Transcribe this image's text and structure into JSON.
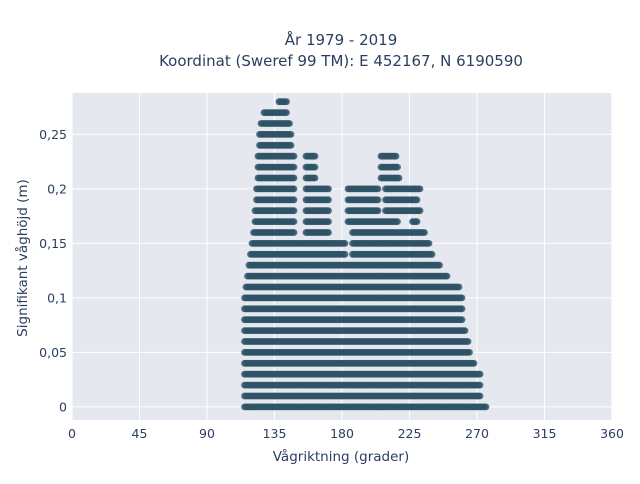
{
  "chart_data": {
    "type": "scatter",
    "title_line1": "År 1979 - 2019",
    "title_line2": "Koordinat (Sweref 99 TM): E 452167, N 6190590",
    "xlabel": "Vågriktning (grader)",
    "ylabel": "Signifikant våghöjd (m)",
    "xlim": [
      0,
      360
    ],
    "ylim": [
      -0.012,
      0.288
    ],
    "x_ticks": [
      0,
      45,
      90,
      135,
      180,
      225,
      270,
      315,
      360
    ],
    "x_tick_labels": [
      "0",
      "45",
      "90",
      "135",
      "180",
      "225",
      "270",
      "315",
      "360"
    ],
    "y_ticks": [
      0,
      0.05,
      0.1,
      0.15,
      0.2,
      0.25
    ],
    "y_tick_labels": [
      "0",
      "0,05",
      "0,1",
      "0,15",
      "0,2",
      "0,25"
    ],
    "grid": true,
    "x_step_deg": 1,
    "y_step_m": 0.01,
    "marker_color": "#2e5266",
    "plot_background": "#e5e8ef",
    "grid_color": "#ffffff",
    "envelope": [
      {
        "y": 0.0,
        "xmin": 115,
        "xmax": 276
      },
      {
        "y": 0.01,
        "xmin": 115,
        "xmax": 272
      },
      {
        "y": 0.02,
        "xmin": 115,
        "xmax": 272
      },
      {
        "y": 0.03,
        "xmin": 115,
        "xmax": 272
      },
      {
        "y": 0.04,
        "xmin": 115,
        "xmax": 268
      },
      {
        "y": 0.05,
        "xmin": 115,
        "xmax": 265
      },
      {
        "y": 0.06,
        "xmin": 115,
        "xmax": 264
      },
      {
        "y": 0.07,
        "xmin": 115,
        "xmax": 262
      },
      {
        "y": 0.08,
        "xmin": 115,
        "xmax": 260
      },
      {
        "y": 0.09,
        "xmin": 115,
        "xmax": 260
      },
      {
        "y": 0.1,
        "xmin": 115,
        "xmax": 260
      },
      {
        "y": 0.11,
        "xmin": 116,
        "xmax": 258
      },
      {
        "y": 0.12,
        "xmin": 117,
        "xmax": 250
      },
      {
        "y": 0.13,
        "xmin": 118,
        "xmax": 245
      },
      {
        "y": 0.14,
        "xmin": 119,
        "xmax": 240
      },
      {
        "y": 0.15,
        "xmin": 120,
        "xmax": 238
      },
      {
        "y": 0.16,
        "xmin": 121,
        "xmax": 235
      },
      {
        "y": 0.17,
        "xmin": 122,
        "xmax": 230
      },
      {
        "y": 0.18,
        "xmin": 122,
        "xmax": 232
      },
      {
        "y": 0.19,
        "xmin": 123,
        "xmax": 230
      },
      {
        "y": 0.2,
        "xmin": 123,
        "xmax": 232
      },
      {
        "y": 0.21,
        "xmin": 124,
        "xmax": 218
      },
      {
        "y": 0.22,
        "xmin": 124,
        "xmax": 217
      },
      {
        "y": 0.23,
        "xmin": 124,
        "xmax": 216
      },
      {
        "y": 0.24,
        "xmin": 125,
        "xmax": 146
      },
      {
        "y": 0.25,
        "xmin": 125,
        "xmax": 146
      },
      {
        "y": 0.26,
        "xmin": 126,
        "xmax": 145
      },
      {
        "y": 0.27,
        "xmin": 128,
        "xmax": 143
      },
      {
        "y": 0.28,
        "xmin": 138,
        "xmax": 143
      }
    ],
    "gaps": [
      {
        "ymin": 0.16,
        "ymax": 0.23,
        "xmin": 149,
        "xmax": 155
      },
      {
        "ymin": 0.16,
        "ymax": 0.23,
        "xmin": 172,
        "xmax": 183
      },
      {
        "ymin": 0.21,
        "ymax": 0.23,
        "xmin": 163,
        "xmax": 205
      },
      {
        "ymin": 0.14,
        "ymax": 0.16,
        "xmin": 183,
        "xmax": 186
      },
      {
        "ymin": 0.18,
        "ymax": 0.2,
        "xmin": 205,
        "xmax": 208
      },
      {
        "ymin": 0.17,
        "ymax": 0.17,
        "xmin": 218,
        "xmax": 226
      }
    ]
  }
}
